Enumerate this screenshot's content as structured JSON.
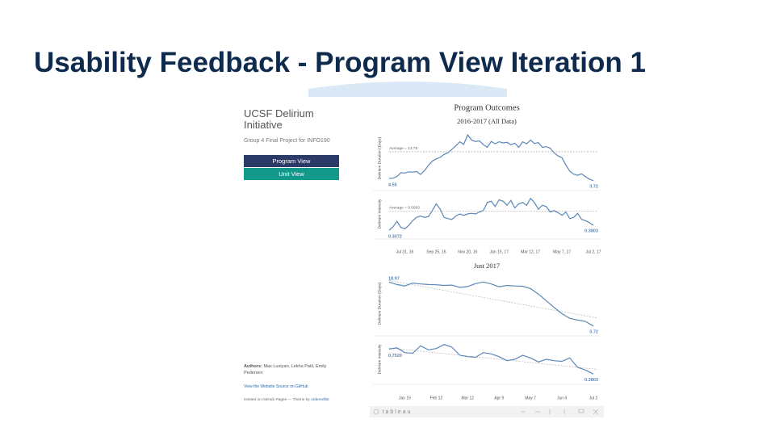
{
  "slide": {
    "title": "Usability Feedback - Program View Iteration 1"
  },
  "sidebar": {
    "title": "UCSF Delirium Initiative",
    "subtitle": "Group 4 Final Project for INFO190",
    "buttons": [
      "Program View",
      "Unit View"
    ],
    "authors_label": "Authors:",
    "authors": "Max Lustyan, Lekha Patil, Emily Pedersen",
    "source_link": "View the Website Source on GitHub",
    "hosted": "Hosted on GitHub Pages — Theme by",
    "theme_link": "orderedlist"
  },
  "dashboard": {
    "title": "Program Outcomes",
    "footer": "tableau",
    "sections": [
      {
        "title": "2016-2017 (All Data)",
        "x_labels": [
          "Jul 31, 16",
          "Sep 25, 16",
          "Nov 20, 16",
          "Jan 15, 17",
          "Mar 12, 17",
          "May 7, 17",
          "Jul 2, 17"
        ],
        "panels": [
          {
            "ylabel": "Delirium Duration (Days)",
            "ylim": [
              2,
              21
            ],
            "color": "#5b86b8",
            "average": 13.75,
            "average_label": "Average = 13.75",
            "start_label": "4.55",
            "end_label": "3.72",
            "values": [
              4.55,
              4.6,
              5.2,
              6.5,
              6.4,
              6.8,
              6.7,
              6.9,
              5.9,
              7.2,
              9,
              10.5,
              11.3,
              11.8,
              12.8,
              13.4,
              14.6,
              15.8,
              17.2,
              16.3,
              19.6,
              17.8,
              17.3,
              17.5,
              16.2,
              15.3,
              17.3,
              16.5,
              17.2,
              16.8,
              17,
              16.2,
              16.7,
              15.3,
              17.2,
              16.5,
              17.8,
              16.6,
              16.9,
              15.3,
              15.5,
              15,
              13.4,
              12.3,
              11.7,
              9.2,
              7,
              6,
              5.6,
              6.1,
              5.1,
              4.3,
              3.72
            ]
          },
          {
            "ylabel": "Delirium Intensity",
            "ylim": [
              0.25,
              0.85
            ],
            "color": "#5b86b8",
            "average": 0.595,
            "average_label": "Average = 0.5950",
            "start_label": "0.3072",
            "end_label": "0.3803",
            "values": [
              0.3072,
              0.36,
              0.44,
              0.35,
              0.33,
              0.38,
              0.45,
              0.5,
              0.52,
              0.5,
              0.51,
              0.6,
              0.7,
              0.62,
              0.5,
              0.48,
              0.47,
              0.52,
              0.55,
              0.53,
              0.55,
              0.56,
              0.55,
              0.58,
              0.6,
              0.72,
              0.74,
              0.66,
              0.76,
              0.74,
              0.68,
              0.75,
              0.64,
              0.7,
              0.72,
              0.68,
              0.78,
              0.72,
              0.62,
              0.68,
              0.66,
              0.58,
              0.6,
              0.57,
              0.53,
              0.58,
              0.48,
              0.5,
              0.56,
              0.47,
              0.45,
              0.42,
              0.3803
            ]
          }
        ]
      },
      {
        "title": "Just 2017",
        "x_labels": [
          "Jan 15",
          "Feb 12",
          "Mar 12",
          "Apr 9",
          "May 7",
          "Jun 4",
          "Jul 2"
        ],
        "panels": [
          {
            "ylabel": "Delirium Duration (Days)",
            "ylim": [
              2,
              21
            ],
            "color": "#5b86b8",
            "trend": [
              19.5,
              6.5
            ],
            "start_label": "18.97",
            "end_label": "3.72",
            "values": [
              18.97,
              18.1,
              17.6,
              18.6,
              18.3,
              18.1,
              18,
              17.8,
              17.9,
              17.1,
              17.4,
              18.4,
              19,
              18.3,
              17.3,
              17.8,
              17.6,
              17.5,
              16.7,
              14.8,
              12.5,
              10.2,
              8,
              6.4,
              5.8,
              5.3,
              3.72
            ]
          },
          {
            "ylabel": "Delirium Intensity",
            "ylim": [
              0.3,
              0.9
            ],
            "color": "#5b86b8",
            "trend": [
              0.77,
              0.45
            ],
            "start_label": "0.7520",
            "end_label": "0.3803",
            "values": [
              0.752,
              0.77,
              0.7,
              0.69,
              0.8,
              0.74,
              0.76,
              0.82,
              0.78,
              0.66,
              0.64,
              0.63,
              0.7,
              0.68,
              0.64,
              0.58,
              0.6,
              0.66,
              0.62,
              0.56,
              0.6,
              0.58,
              0.57,
              0.62,
              0.48,
              0.44,
              0.3803
            ]
          }
        ]
      }
    ]
  }
}
